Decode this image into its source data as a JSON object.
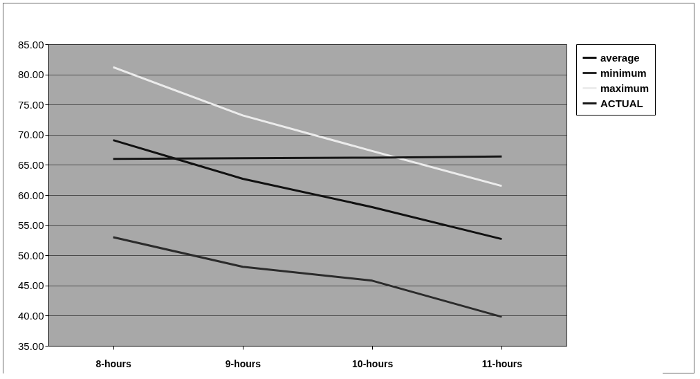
{
  "chart_data": {
    "type": "line",
    "categories": [
      "8-hours",
      "9-hours",
      "10-hours",
      "11-hours"
    ],
    "series": [
      {
        "name": "average",
        "color": "#111111",
        "values": [
          69.1,
          62.7,
          58.0,
          52.7
        ]
      },
      {
        "name": "minimum",
        "color": "#2b2b2b",
        "values": [
          53.0,
          48.1,
          45.8,
          39.8
        ]
      },
      {
        "name": "maximum",
        "color": "#ececec",
        "values": [
          81.2,
          73.2,
          67.3,
          61.5
        ]
      },
      {
        "name": "ACTUAL",
        "color": "#161616",
        "values": [
          66.0,
          66.1,
          66.2,
          66.4
        ]
      }
    ],
    "ylim": [
      35,
      85
    ],
    "yticks": [
      {
        "value": 35,
        "label": "35.00"
      },
      {
        "value": 40,
        "label": "40.00"
      },
      {
        "value": 45,
        "label": "45.00"
      },
      {
        "value": 50,
        "label": "50.00"
      },
      {
        "value": 55,
        "label": "55.00"
      },
      {
        "value": 60,
        "label": "60.00"
      },
      {
        "value": 65,
        "label": "65.00"
      },
      {
        "value": 70,
        "label": "70.00"
      },
      {
        "value": 75,
        "label": "75.00"
      },
      {
        "value": 80,
        "label": "80.00"
      },
      {
        "value": 85,
        "label": "85.00"
      }
    ],
    "grid": "y",
    "legend": "right",
    "marker": "none",
    "line_style": "solid"
  }
}
